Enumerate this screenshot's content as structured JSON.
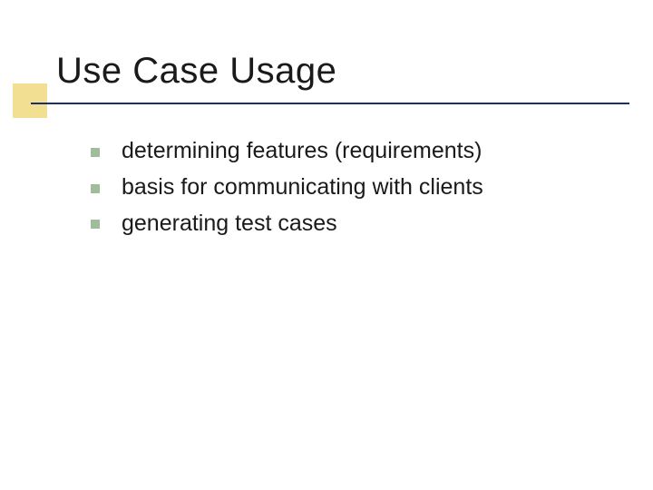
{
  "slide": {
    "title": "Use Case Usage",
    "bullets": [
      {
        "text": "determining features (requirements)"
      },
      {
        "text": "basis for communicating with clients"
      },
      {
        "text": "generating test cases"
      }
    ],
    "style": {
      "title_fontsize": 40,
      "title_color": "#1a1a1a",
      "bullet_fontsize": 25,
      "bullet_color": "#1a1a1a",
      "bullet_square_color": "#a0bc9a",
      "bullet_square_size": 10,
      "accent_block_color": "#f2df91",
      "accent_block_size": 38,
      "underline_color": "#1b2f6b",
      "underline_thickness": 2,
      "background_color": "#ffffff",
      "font_family": "Verdana"
    }
  }
}
